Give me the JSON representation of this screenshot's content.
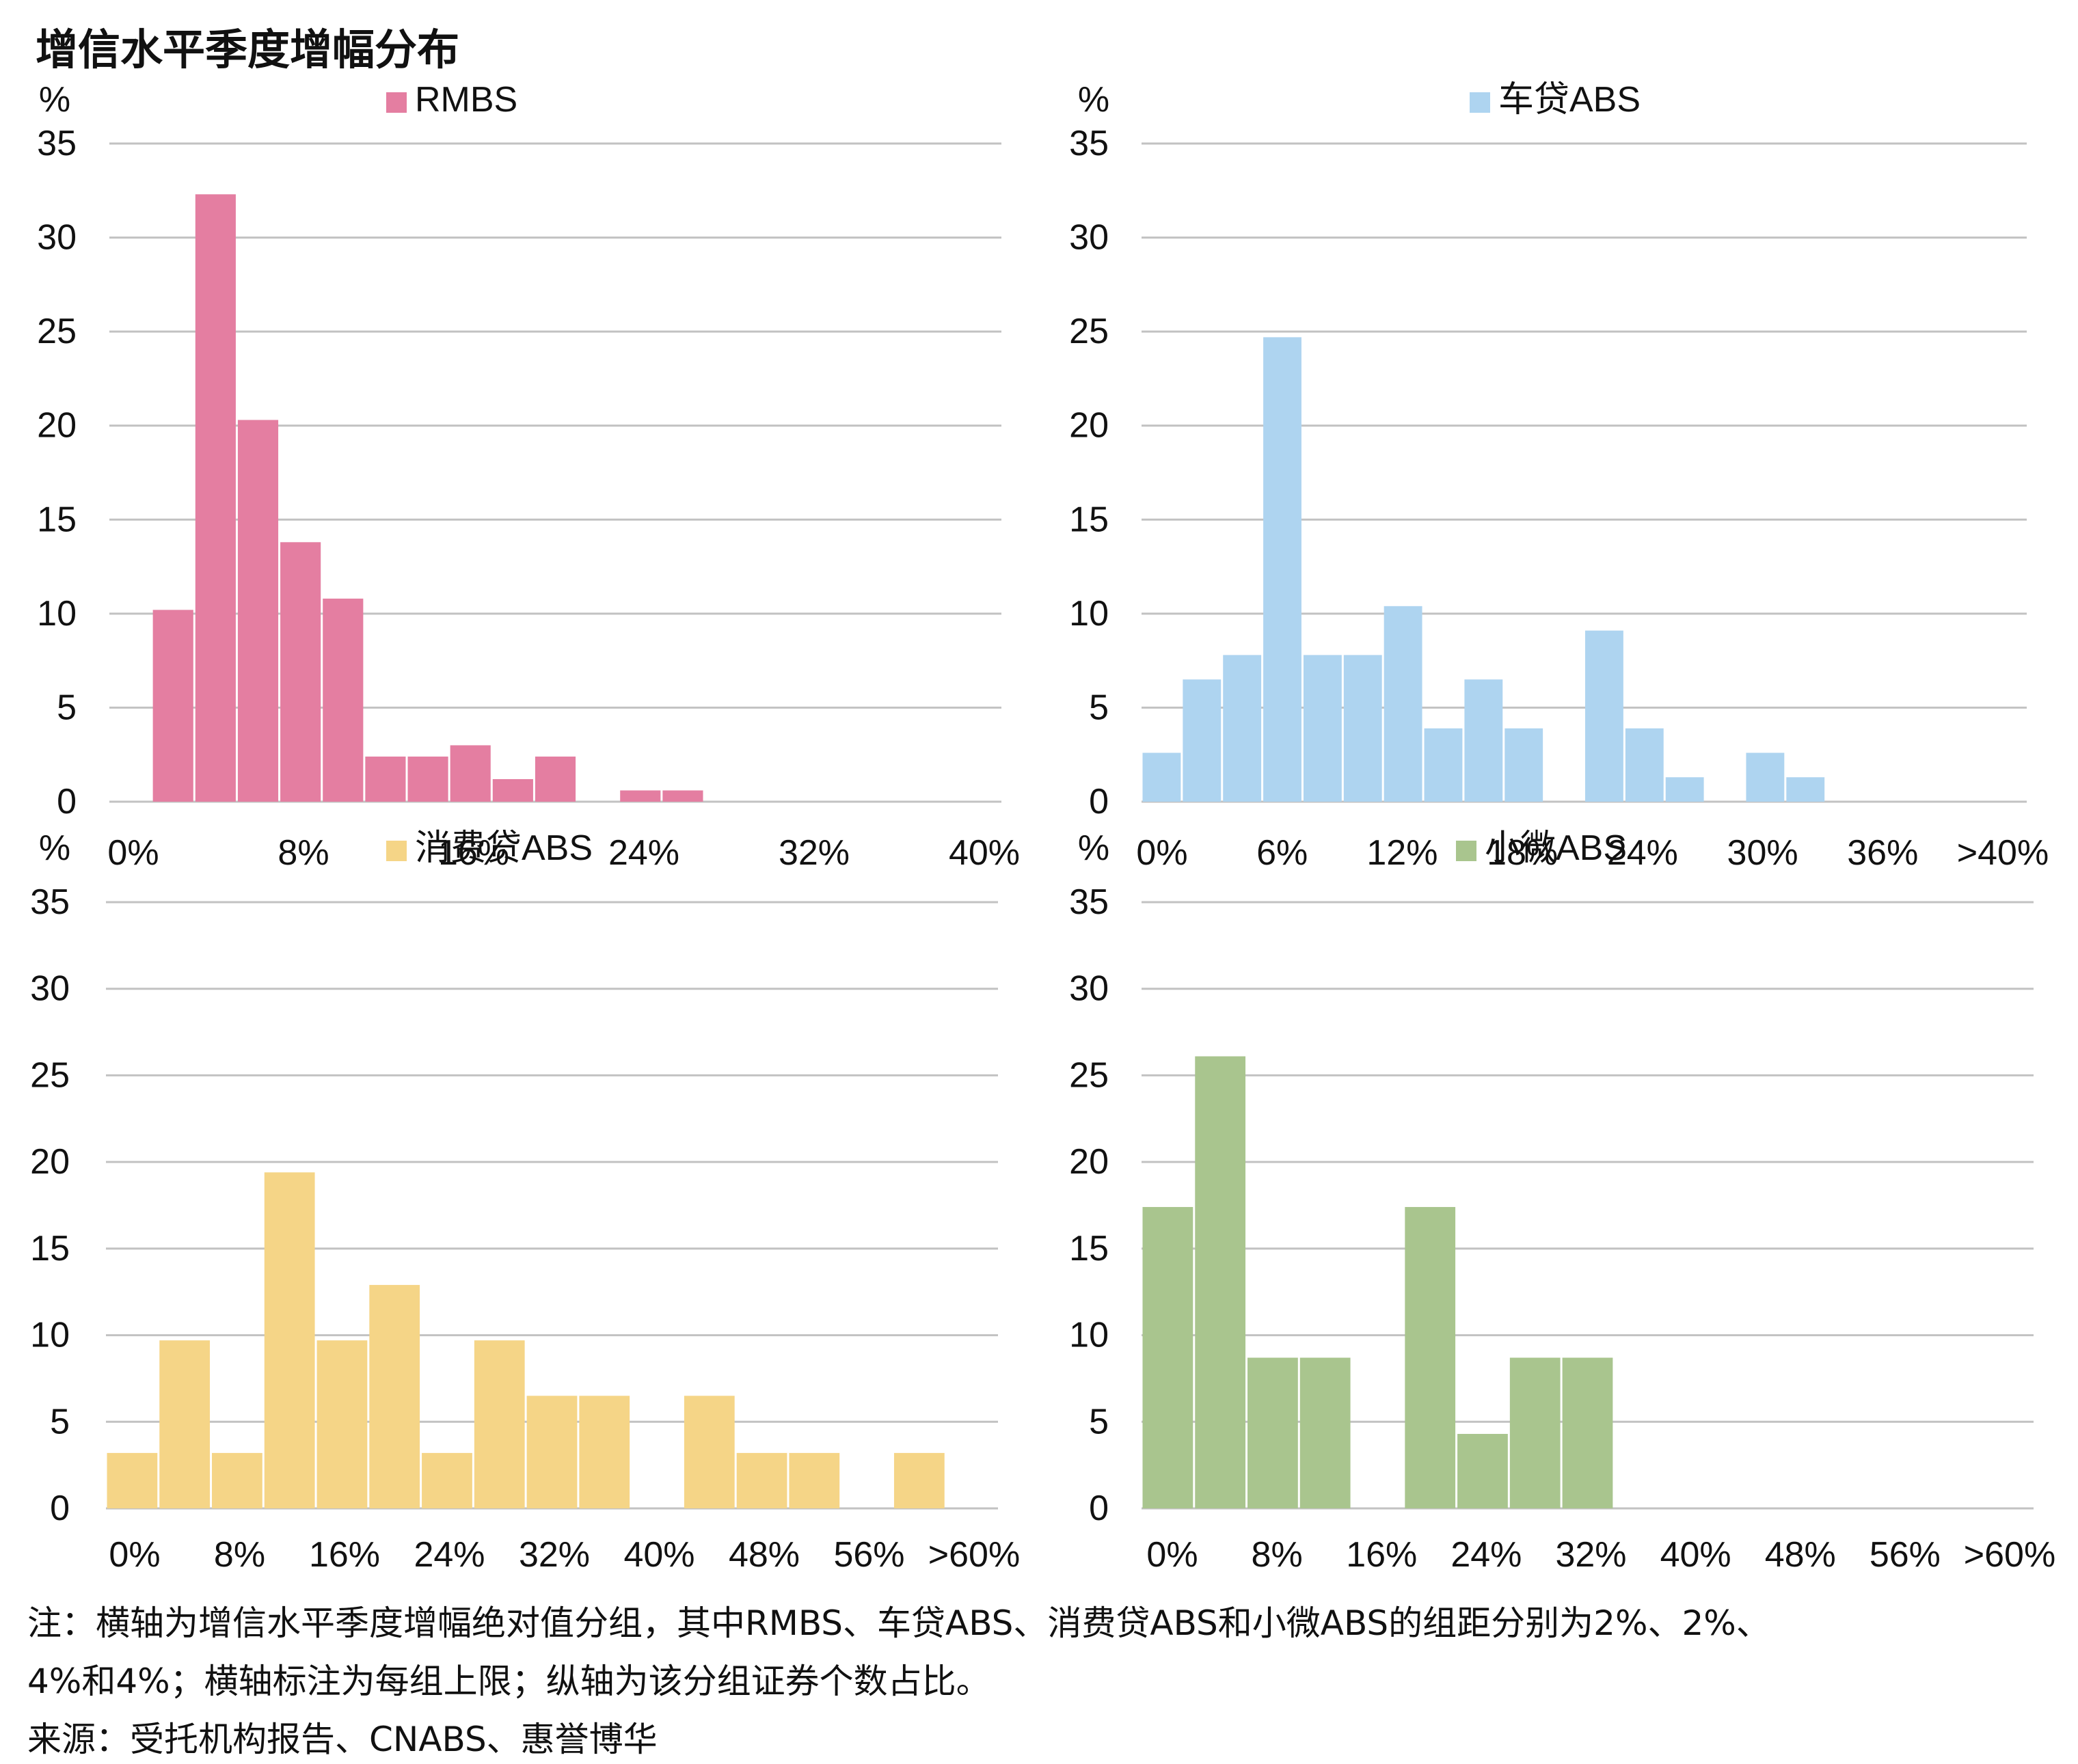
{
  "title": "增信水平季度增幅分布",
  "notes": [
    "注：横轴为增信水平季度增幅绝对值分组，其中RMBS、车贷ABS、消费贷ABS和小微ABS的组距分别为2%、2%、",
    "4%和4%；横轴标注为每组上限；纵轴为该分组证券个数占比。",
    "来源：受托机构报告、CNABS、惠誉博华"
  ],
  "chart_data": [
    {
      "type": "bar",
      "title": "RMBS",
      "legend": "RMBS",
      "color": "#e47ea1",
      "unit": "%",
      "ylim": [
        0,
        35
      ],
      "yticks": [
        "0",
        "5",
        "10",
        "15",
        "20",
        "25",
        "30",
        "35"
      ],
      "xticks": [
        "0%",
        "8%",
        "16%",
        "24%",
        "32%",
        "40%"
      ],
      "grid": true,
      "bin_width_percent": 2,
      "n_bins": 21,
      "values": [
        0,
        10.2,
        32.3,
        20.3,
        13.8,
        10.8,
        2.4,
        2.4,
        3.0,
        1.2,
        2.4,
        0,
        0.6,
        0.6,
        0,
        0,
        0,
        0,
        0,
        0,
        0
      ]
    },
    {
      "type": "bar",
      "title": "车贷ABS",
      "legend": "车贷ABS",
      "color": "#aed4f0",
      "unit": "%",
      "ylim": [
        0,
        35
      ],
      "yticks": [
        "0",
        "5",
        "10",
        "15",
        "20",
        "25",
        "30",
        "35"
      ],
      "xticks": [
        "0%",
        "6%",
        "12%",
        "18%",
        "24%",
        "30%",
        "36%",
        ">40%"
      ],
      "grid": true,
      "bin_width_percent": 2,
      "n_bins": 22,
      "values": [
        2.6,
        6.5,
        7.8,
        24.7,
        7.8,
        7.8,
        10.4,
        3.9,
        6.5,
        3.9,
        0,
        9.1,
        3.9,
        1.3,
        0,
        2.6,
        1.3,
        0,
        0,
        0,
        0,
        0
      ]
    },
    {
      "type": "bar",
      "title": "消费贷ABS",
      "legend": "消费贷ABS",
      "color": "#f5d587",
      "unit": "%",
      "ylim": [
        0,
        35
      ],
      "yticks": [
        "0",
        "5",
        "10",
        "15",
        "20",
        "25",
        "30",
        "35"
      ],
      "xticks": [
        "0%",
        "8%",
        "16%",
        "24%",
        "32%",
        "40%",
        "48%",
        "56%",
        ">60%"
      ],
      "grid": true,
      "bin_width_percent": 4,
      "n_bins": 17,
      "values": [
        3.2,
        9.7,
        3.2,
        19.4,
        9.7,
        12.9,
        3.2,
        9.7,
        6.5,
        6.5,
        0,
        6.5,
        3.2,
        3.2,
        0,
        3.2,
        0
      ]
    },
    {
      "type": "bar",
      "title": "小微ABS",
      "legend": "小微ABS",
      "color": "#a9c58e",
      "unit": "%",
      "ylim": [
        0,
        35
      ],
      "yticks": [
        "0",
        "5",
        "10",
        "15",
        "20",
        "25",
        "30",
        "35"
      ],
      "xticks": [
        "0%",
        "8%",
        "16%",
        "24%",
        "32%",
        "40%",
        "48%",
        "56%",
        ">60%"
      ],
      "grid": true,
      "bin_width_percent": 4,
      "n_bins": 17,
      "values": [
        17.4,
        26.1,
        8.7,
        8.7,
        0,
        17.4,
        4.3,
        8.7,
        8.7,
        0,
        0,
        0,
        0,
        0,
        0,
        0,
        0
      ]
    }
  ]
}
